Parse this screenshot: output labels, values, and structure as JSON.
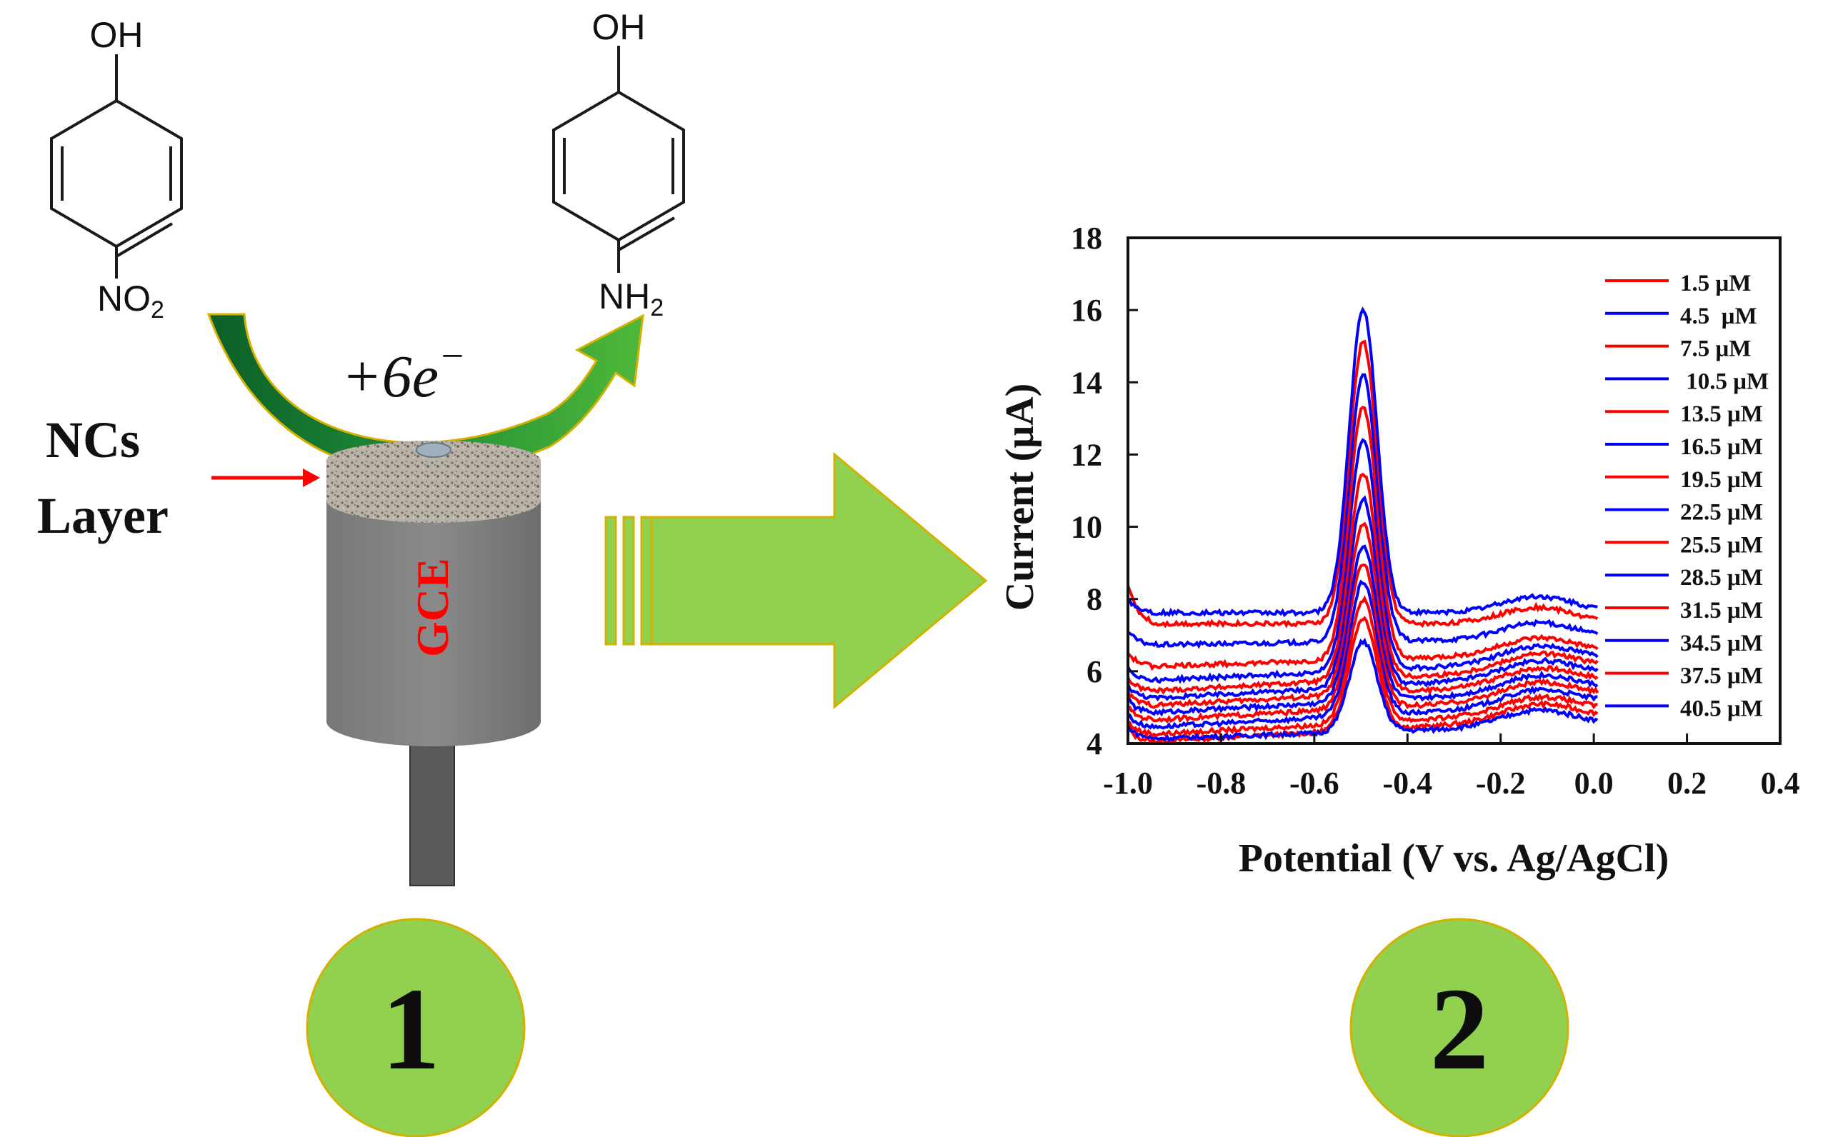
{
  "scheme": {
    "reactant": {
      "top_label": "OH",
      "bottom_label_main": "NO",
      "bottom_label_sub": "2"
    },
    "product": {
      "top_label": "OH",
      "bottom_label_main": "NH",
      "bottom_label_sub": "2"
    },
    "electrons": {
      "prefix": "+6",
      "symbol": "e",
      "charge": "−"
    },
    "layer_label_line1": "NCs",
    "layer_label_line2": "Layer",
    "electrode_label": "GCE",
    "step1": "1",
    "step2": "2",
    "colors": {
      "arrow_green": "#92d050",
      "curved_arrow_dark": "#0e6b2d",
      "curved_arrow_light": "#6abf2f",
      "arrow_outline": "#d4b000",
      "electrode_body": "#808080",
      "electrode_rod": "#595959",
      "pointer_red": "#ff0000"
    }
  },
  "chart_data": {
    "type": "line",
    "xlabel": "Potential (V vs. Ag/AgCl)",
    "ylabel": "Current (μA)",
    "xlim": [
      -1.0,
      0.4
    ],
    "ylim": [
      4,
      18
    ],
    "xticks": [
      "-1.0",
      "-0.8",
      "-0.6",
      "-0.4",
      "-0.2",
      "0.0",
      "0.2",
      "0.4"
    ],
    "yticks": [
      "4",
      "6",
      "8",
      "10",
      "12",
      "14",
      "16",
      "18"
    ],
    "legend_position": "top-right",
    "grid": false,
    "colors": {
      "red": "#ff0000",
      "blue": "#0000ff"
    },
    "series": [
      {
        "name": "1.5 μM",
        "color": "red",
        "baseline": 3.9,
        "peak": 7.0,
        "right": 4.6
      },
      {
        "name": "4.5  μM",
        "color": "blue",
        "baseline": 4.0,
        "peak": 6.5,
        "right": 4.4
      },
      {
        "name": "7.5 μM",
        "color": "red",
        "baseline": 4.1,
        "peak": 7.5,
        "right": 4.8
      },
      {
        "name": " 10.5 μM",
        "color": "blue",
        "baseline": 4.3,
        "peak": 8.0,
        "right": 5.0
      },
      {
        "name": "13.5 μM",
        "color": "red",
        "baseline": 4.5,
        "peak": 8.5,
        "right": 5.2
      },
      {
        "name": "16.5 μM",
        "color": "blue",
        "baseline": 4.7,
        "peak": 9.0,
        "right": 5.4
      },
      {
        "name": "19.5 μM",
        "color": "red",
        "baseline": 4.9,
        "peak": 9.6,
        "right": 5.6
      },
      {
        "name": "22.5 μM",
        "color": "blue",
        "baseline": 5.1,
        "peak": 10.3,
        "right": 5.8
      },
      {
        "name": "25.5 μM",
        "color": "red",
        "baseline": 5.3,
        "peak": 11.0,
        "right": 6.0
      },
      {
        "name": "28.5 μM",
        "color": "blue",
        "baseline": 5.6,
        "peak": 12.0,
        "right": 6.2
      },
      {
        "name": "31.5 μM",
        "color": "red",
        "baseline": 6.0,
        "peak": 13.0,
        "right": 6.4
      },
      {
        "name": "34.5 μM",
        "color": "blue",
        "baseline": 6.6,
        "peak": 14.0,
        "right": 6.8
      },
      {
        "name": "37.5 μM",
        "color": "red",
        "baseline": 7.2,
        "peak": 15.0,
        "right": 7.2
      },
      {
        "name": "40.5 μM",
        "color": "blue",
        "baseline": 7.5,
        "peak": 15.9,
        "right": 7.5
      }
    ]
  }
}
